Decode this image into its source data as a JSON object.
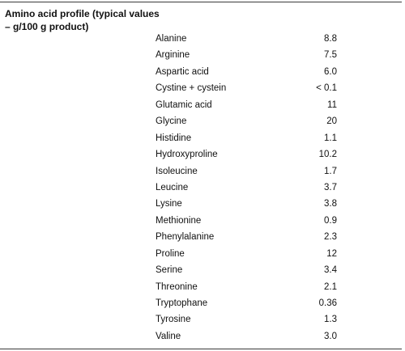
{
  "table": {
    "header": "Amino acid profile (typical values – g/100 g product)",
    "rows": [
      {
        "name": "Alanine",
        "value": "8.8"
      },
      {
        "name": "Arginine",
        "value": "7.5"
      },
      {
        "name": "Aspartic acid",
        "value": "6.0"
      },
      {
        "name": "Cystine + cystein",
        "value": "< 0.1"
      },
      {
        "name": "Glutamic acid",
        "value": "11"
      },
      {
        "name": "Glycine",
        "value": "20"
      },
      {
        "name": "Histidine",
        "value": "1.1"
      },
      {
        "name": "Hydroxyproline",
        "value": "10.2"
      },
      {
        "name": "Isoleucine",
        "value": "1.7"
      },
      {
        "name": "Leucine",
        "value": "3.7"
      },
      {
        "name": "Lysine",
        "value": "3.8"
      },
      {
        "name": "Methionine",
        "value": "0.9"
      },
      {
        "name": "Phenylalanine",
        "value": "2.3"
      },
      {
        "name": "Proline",
        "value": "12"
      },
      {
        "name": "Serine",
        "value": "3.4"
      },
      {
        "name": "Threonine",
        "value": "2.1"
      },
      {
        "name": "Tryptophane",
        "value": "0.36"
      },
      {
        "name": "Tyrosine",
        "value": "1.3"
      },
      {
        "name": "Valine",
        "value": "3.0"
      }
    ]
  }
}
